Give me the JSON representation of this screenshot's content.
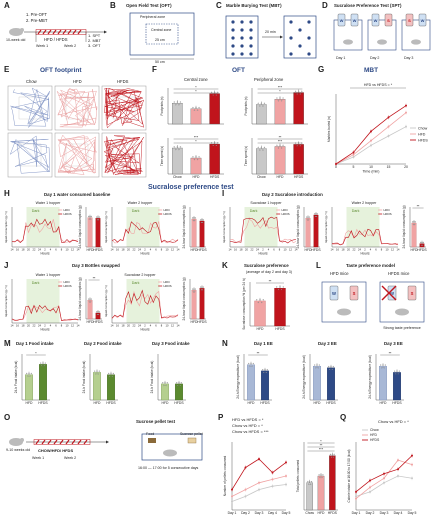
{
  "panels": [
    "A",
    "B",
    "C",
    "D",
    "E",
    "F",
    "G",
    "H",
    "I",
    "J",
    "K",
    "L",
    "M",
    "N",
    "O",
    "P",
    "Q"
  ],
  "sections": {
    "oft": "OFT",
    "sucrose_test": "Sucralose preference test"
  },
  "panelA": {
    "age": "10-week old",
    "pre1": "1. Pre-OFT",
    "pre2": "2. Pre-MBT",
    "diet": "HFD / HFDS",
    "week1": "Week 1",
    "week2": "Week 2",
    "post1": "1. SPT",
    "post2": "2. MBT",
    "post3": "3. OFT"
  },
  "panelB": {
    "title": "Open Field Test (OFT)",
    "peripheral": "Peripheral zone",
    "central": "Central zone",
    "inner": "25 cm",
    "outer": "50 cm"
  },
  "panelC": {
    "title": "Marble Burying Test (MBT)",
    "duration": "20 min"
  },
  "panelD": {
    "title": "Sucralose Preference Test (SPT)",
    "days": [
      "Day 1",
      "Day 2",
      "Day 3"
    ],
    "bottles": [
      "W",
      "W",
      "W",
      "S",
      "S",
      "W"
    ]
  },
  "panelE": {
    "title": "OFT footprint",
    "groups": [
      "Chow",
      "HFD",
      "HFDS"
    ]
  },
  "panelF": {
    "title": "OFT",
    "col1": "Central zone",
    "col2": "Peripheral zone",
    "ylabel_top": "Footprints (n)",
    "ylabel_bottom": "Time spent (s)",
    "groups": [
      "Chow",
      "HFD",
      "HFDS"
    ],
    "sig": [
      "*",
      "*",
      "***",
      "*",
      "***",
      "*",
      "**",
      "***"
    ]
  },
  "panelG": {
    "title": "MBT",
    "annotation": "HFD vs HFDS = *",
    "xlabel": "Time (min)",
    "ylabel": "Marbles buried (n)",
    "xticks": [
      "0",
      "5",
      "10",
      "15",
      "20"
    ],
    "legend": [
      "Chow",
      "HFD",
      "HFDS"
    ]
  },
  "panelH": {
    "title": "Day 1 water consumed baseline",
    "left": "Water 1 hopper",
    "right": "Water 2 hopper"
  },
  "panelI": {
    "title": "Day 2 Sucralose introduction",
    "left": "Sucralose 1 hopper",
    "right": "Water 2 hopper",
    "sig": "**"
  },
  "panelJ": {
    "title": "Day 3 Bottles swapped",
    "left": "Water 1 hopper",
    "right": "Sucralose 2 hopper",
    "sig": "**"
  },
  "timecourse": {
    "dark": "Dark",
    "xlabel": "Hours",
    "ylabel": "liquid consumption (g / h)",
    "bar_ylabel": "24-hour liquid consumption (g)",
    "bar_groups": [
      "HFD",
      "HFDS"
    ],
    "legend": [
      "HFD",
      "HFDS"
    ],
    "hours": [
      "14",
      "16",
      "18",
      "20",
      "22",
      "24",
      "2",
      "4",
      "6",
      "8",
      "10",
      "12",
      "14"
    ]
  },
  "panelK": {
    "title": "Sucralose preference",
    "subtitle": "(average of day 2 and day 3)",
    "ylabel": "Sucralose consumption % (per 24 h)",
    "groups": [
      "HFD",
      "HFDS"
    ],
    "sig": "**"
  },
  "panelL": {
    "title": "Taste preference model",
    "hfd": "HFD mice",
    "hfds": "HFDS mice",
    "note": "Strong taste preference",
    "bottle_w": "W",
    "bottle_s": "S"
  },
  "panelM": {
    "titles": [
      "Day 1 Food intake",
      "Day 2 Food intake",
      "Day 3 Food intake"
    ],
    "ylabel": "24-h Food intake (kcal)",
    "groups": [
      "HFD",
      "HFDS"
    ],
    "sig": "*"
  },
  "panelN": {
    "titles": [
      "Day 1 EE",
      "Day 2 EE",
      "Day 3 EE"
    ],
    "ylabel": "24-h Energy expenditure (kcal)",
    "groups": [
      "HFD",
      "HFDS"
    ],
    "sig": [
      "**",
      "**"
    ]
  },
  "panelO": {
    "age": "9-10 weeks old",
    "diet": "CHOW/HFD/ HFDS",
    "week1": "Week 1",
    "week2": "Week 2",
    "title": "Sucrose pellet test",
    "food": "Food",
    "pellet": "Sucrose pellet",
    "schedule": "16:00 — 17:00 for 5 consecutive days"
  },
  "panelP": {
    "ann1": "HFD vs HFDS = *",
    "ann2": "Chow vs HFD = *",
    "ann3": "Chow vs HFDS = ***",
    "ylabel": "Number of pellets consumed",
    "ylabel2": "Total pellets consumed",
    "days": [
      "Day 1",
      "Day 2",
      "Day 3",
      "Day 4",
      "Day 5"
    ],
    "bar_groups": [
      "Chow",
      "HFD",
      "HFDS"
    ],
    "sig": [
      "*",
      "**",
      "***"
    ]
  },
  "panelQ": {
    "ann": "Chow vs HFD = *",
    "ylabel": "Calorie intake at 16:00 to 17:00 (kcal)",
    "days": [
      "Day 1",
      "Day 2",
      "Day 3",
      "Day 4",
      "Day 5"
    ],
    "legend": [
      "Chow",
      "HFD",
      "HFDS"
    ]
  },
  "colors": {
    "chow": "#c8c8c8",
    "hfd": "#f0a3a3",
    "hfds": "#c0141c",
    "green_light": "#b5cf8f",
    "green_dark": "#5b8a2f",
    "blue_light": "#a8b8d6",
    "blue_dark": "#2e4a86",
    "dark_shade": "#e6f2dc",
    "heading": "#2e4a86"
  },
  "chart_data": [
    {
      "id": "F-central-footprints",
      "type": "bar",
      "categories": [
        "Chow",
        "HFD",
        "HFDS"
      ],
      "values": [
        1500,
        1100,
        2200
      ]
    },
    {
      "id": "F-peripheral-footprints",
      "type": "bar",
      "categories": [
        "Chow",
        "HFD",
        "HFDS"
      ],
      "values": [
        2600,
        3300,
        4200
      ]
    },
    {
      "id": "F-central-time",
      "type": "bar",
      "categories": [
        "Chow",
        "HFD",
        "HFDS"
      ],
      "values": [
        130,
        80,
        150
      ]
    },
    {
      "id": "F-peripheral-time",
      "type": "bar",
      "categories": [
        "Chow",
        "HFD",
        "HFDS"
      ],
      "values": [
        600,
        650,
        700
      ]
    },
    {
      "id": "G-mbt",
      "type": "line",
      "x": [
        0,
        5,
        10,
        15,
        20
      ],
      "ylim": [
        0,
        15
      ],
      "series": [
        {
          "name": "Chow",
          "values": [
            0,
            1.5,
            4,
            6,
            8
          ]
        },
        {
          "name": "HFD",
          "values": [
            0,
            2,
            5,
            8,
            11
          ]
        },
        {
          "name": "HFDS",
          "values": [
            0,
            2.5,
            7,
            10,
            12.5
          ]
        }
      ]
    },
    {
      "id": "H-bars-left",
      "type": "bar",
      "categories": [
        "HFD",
        "HFDS"
      ],
      "values": [
        4.4,
        4.3
      ]
    },
    {
      "id": "H-bars-right",
      "type": "bar",
      "categories": [
        "HFD",
        "HFDS"
      ],
      "values": [
        4.2,
        3.9
      ]
    },
    {
      "id": "I-bars-left",
      "type": "bar",
      "categories": [
        "HFD",
        "HFDS"
      ],
      "values": [
        4.3,
        4.8
      ]
    },
    {
      "id": "I-bars-right",
      "type": "bar",
      "categories": [
        "HFD",
        "HFDS"
      ],
      "values": [
        3.6,
        0.5
      ]
    },
    {
      "id": "J-bars-left",
      "type": "bar",
      "categories": [
        "HFD",
        "HFDS"
      ],
      "values": [
        2.8,
        0.9
      ]
    },
    {
      "id": "J-bars-right",
      "type": "bar",
      "categories": [
        "HFD",
        "HFDS"
      ],
      "values": [
        4.3,
        4.6
      ]
    },
    {
      "id": "K",
      "type": "bar",
      "categories": [
        "HFD",
        "HFDS"
      ],
      "values": [
        57,
        86
      ],
      "ylim": [
        0,
        100
      ]
    },
    {
      "id": "M-day1",
      "type": "bar",
      "categories": [
        "HFD",
        "HFDS"
      ],
      "values": [
        11,
        15.5
      ],
      "ylim": [
        0,
        20
      ]
    },
    {
      "id": "M-day2",
      "type": "bar",
      "categories": [
        "HFD",
        "HFDS"
      ],
      "values": [
        12,
        11
      ],
      "ylim": [
        0,
        20
      ]
    },
    {
      "id": "M-day3",
      "type": "bar",
      "categories": [
        "HFD",
        "HFDS"
      ],
      "values": [
        7,
        7
      ],
      "ylim": [
        0,
        20
      ]
    },
    {
      "id": "N-day1",
      "type": "bar",
      "categories": [
        "HFD",
        "HFDS"
      ],
      "values": [
        11.5,
        9.5
      ],
      "ylim": [
        0,
        15
      ]
    },
    {
      "id": "N-day2",
      "type": "bar",
      "categories": [
        "HFD",
        "HFDS"
      ],
      "values": [
        11,
        10.5
      ],
      "ylim": [
        0,
        15
      ]
    },
    {
      "id": "N-day3",
      "type": "bar",
      "categories": [
        "HFD",
        "HFDS"
      ],
      "values": [
        11,
        9
      ],
      "ylim": [
        0,
        15
      ]
    },
    {
      "id": "P-line",
      "type": "line",
      "x": [
        "Day 1",
        "Day 2",
        "Day 3",
        "Day 4",
        "Day 5"
      ],
      "ylim": [
        0,
        40
      ],
      "series": [
        {
          "name": "Chow",
          "values": [
            5,
            8,
            12,
            14,
            15
          ]
        },
        {
          "name": "HFD",
          "values": [
            8,
            12,
            16,
            18,
            20
          ]
        },
        {
          "name": "HFDS",
          "values": [
            12,
            25,
            30,
            22,
            28
          ]
        }
      ]
    },
    {
      "id": "P-bars",
      "type": "bar",
      "categories": [
        "Chow",
        "HFD",
        "HFDS"
      ],
      "values": [
        60,
        75,
        120
      ],
      "ylim": [
        0,
        150
      ]
    },
    {
      "id": "Q-line",
      "type": "line",
      "x": [
        "Day 1",
        "Day 2",
        "Day 3",
        "Day 4",
        "Day 5"
      ],
      "ylim": [
        0,
        3
      ],
      "series": [
        {
          "name": "Chow",
          "values": [
            0.6,
            0.8,
            1.2,
            1.5,
            1.4
          ]
        },
        {
          "name": "HFD",
          "values": [
            0.5,
            1.0,
            1.4,
            2.2,
            2.0
          ]
        },
        {
          "name": "HFDS",
          "values": [
            0.8,
            1.3,
            1.6,
            1.8,
            2.4
          ]
        }
      ]
    }
  ]
}
